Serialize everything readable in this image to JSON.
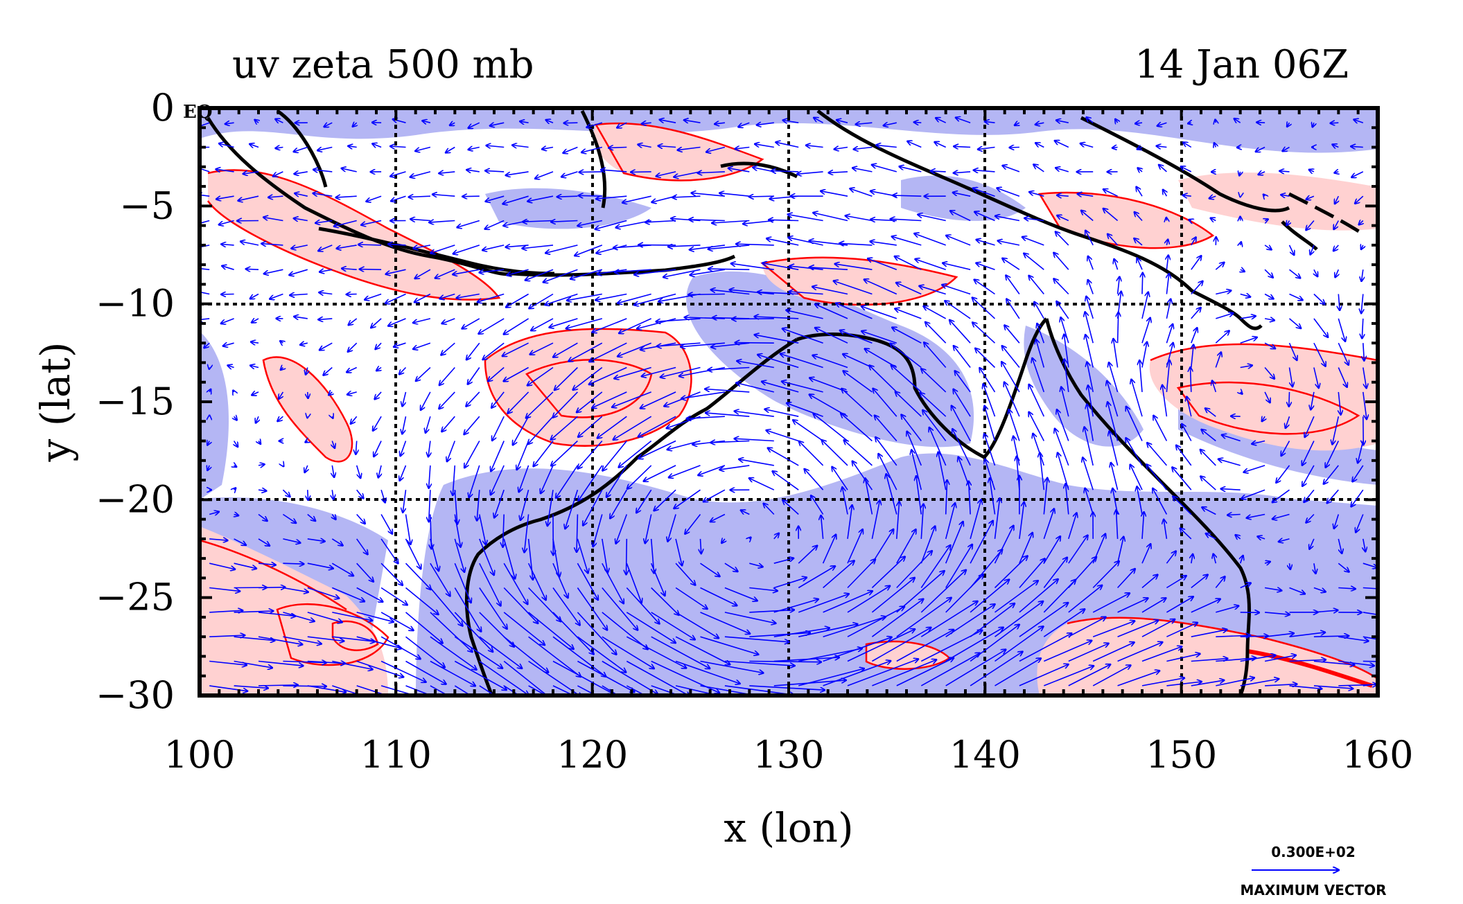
{
  "figure": {
    "title_left": "uv zeta 500 mb",
    "title_right": "14 Jan 06Z",
    "xlabel": "x (lon)",
    "ylabel": "y (lat)",
    "corner_label": "EQ",
    "vector_key": {
      "value": "0.300E+02",
      "caption": "MAXIMUM VECTOR"
    }
  },
  "colors": {
    "positive_fill": "#ffd1d1",
    "negative_fill": "#b4b6f4",
    "contour": "#ff0000",
    "vector": "#0000ff",
    "coastline": "#000000",
    "grid": "#000000"
  },
  "chart_data": {
    "type": "map",
    "xlim": [
      100,
      160
    ],
    "ylim": [
      -30,
      0
    ],
    "xticks": [
      100,
      110,
      120,
      130,
      140,
      150,
      160
    ],
    "yticks": [
      0,
      -5,
      -10,
      -15,
      -20,
      -25,
      -30
    ],
    "grid": true,
    "grid_lines_lon": [
      110,
      120,
      130,
      140,
      150
    ],
    "grid_lines_lat": [
      -10,
      -20
    ],
    "fields": [
      "uv wind vectors",
      "zeta (relative vorticity) shaded contours"
    ],
    "level": "500 mb"
  }
}
